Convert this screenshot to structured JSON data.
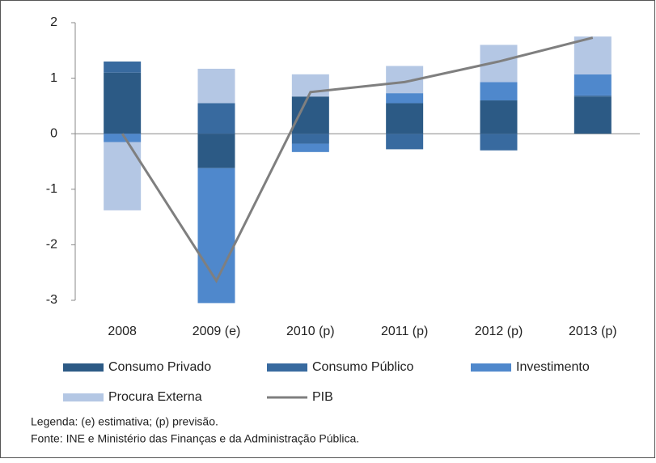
{
  "chart_data": {
    "type": "bar",
    "categories": [
      "2008",
      "2009 (e)",
      "2010 (p)",
      "2011 (p)",
      "2012 (p)",
      "2013 (p)"
    ],
    "series": [
      {
        "name": "Consumo Privado",
        "color": "#2c5a85",
        "values": [
          1.1,
          -0.62,
          0.67,
          0.55,
          0.6,
          0.67
        ]
      },
      {
        "name": "Consumo Público",
        "color": "#386a9f",
        "values": [
          0.2,
          0.55,
          -0.18,
          -0.28,
          -0.3,
          0.02
        ]
      },
      {
        "name": "Investimento",
        "color": "#4f88cc",
        "values": [
          -0.15,
          -2.43,
          -0.15,
          0.18,
          0.33,
          0.38
        ]
      },
      {
        "name": "Procura Externa",
        "color": "#b4c7e4",
        "values": [
          -1.23,
          0.62,
          0.4,
          0.49,
          0.67,
          0.68
        ]
      },
      {
        "name": "PIB",
        "type": "line",
        "color": "#7f7f7f",
        "values": [
          0.0,
          -2.65,
          0.75,
          0.93,
          1.3,
          1.73
        ]
      }
    ],
    "ylim": [
      -3,
      2
    ],
    "yticks": [
      -3,
      -2,
      -1,
      0,
      1,
      2
    ],
    "notes": [
      "Legenda: (e) estimativa; (p) previsão.",
      "Fonte: INE e Ministério das Finanças e da Administração Pública."
    ]
  }
}
